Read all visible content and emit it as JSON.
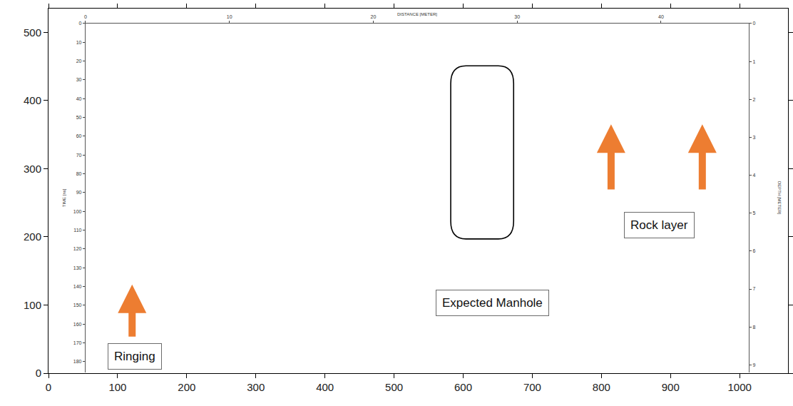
{
  "chart_data": {
    "type": "radargram",
    "xlim": [
      0,
      1070
    ],
    "xticks": [
      0,
      100,
      200,
      300,
      400,
      500,
      600,
      700,
      800,
      900,
      1000
    ],
    "ylim": [
      0,
      535
    ],
    "yticks": [
      0,
      100,
      200,
      300,
      400,
      500
    ],
    "x2label": "DISTANCE [METER]",
    "x2lim": [
      0,
      46.1
    ],
    "x2ticks": [
      0,
      10,
      20,
      30,
      40
    ],
    "y2label": "TIME [ns]",
    "y2lim": [
      0,
      185.7
    ],
    "y2ticks": [
      0,
      10,
      20,
      30,
      40,
      50,
      60,
      70,
      80,
      90,
      100,
      110,
      120,
      130,
      140,
      150,
      160,
      170,
      180
    ],
    "y3label": "DEPTH [METER]",
    "y3lim": [
      0,
      9.2
    ],
    "y3ticks": [
      0,
      1,
      2,
      3,
      4,
      5,
      6,
      7,
      8,
      9
    ],
    "annotations": [
      "Ringing",
      "Expected Manhole",
      "Rock layer"
    ],
    "grid": false
  }
}
